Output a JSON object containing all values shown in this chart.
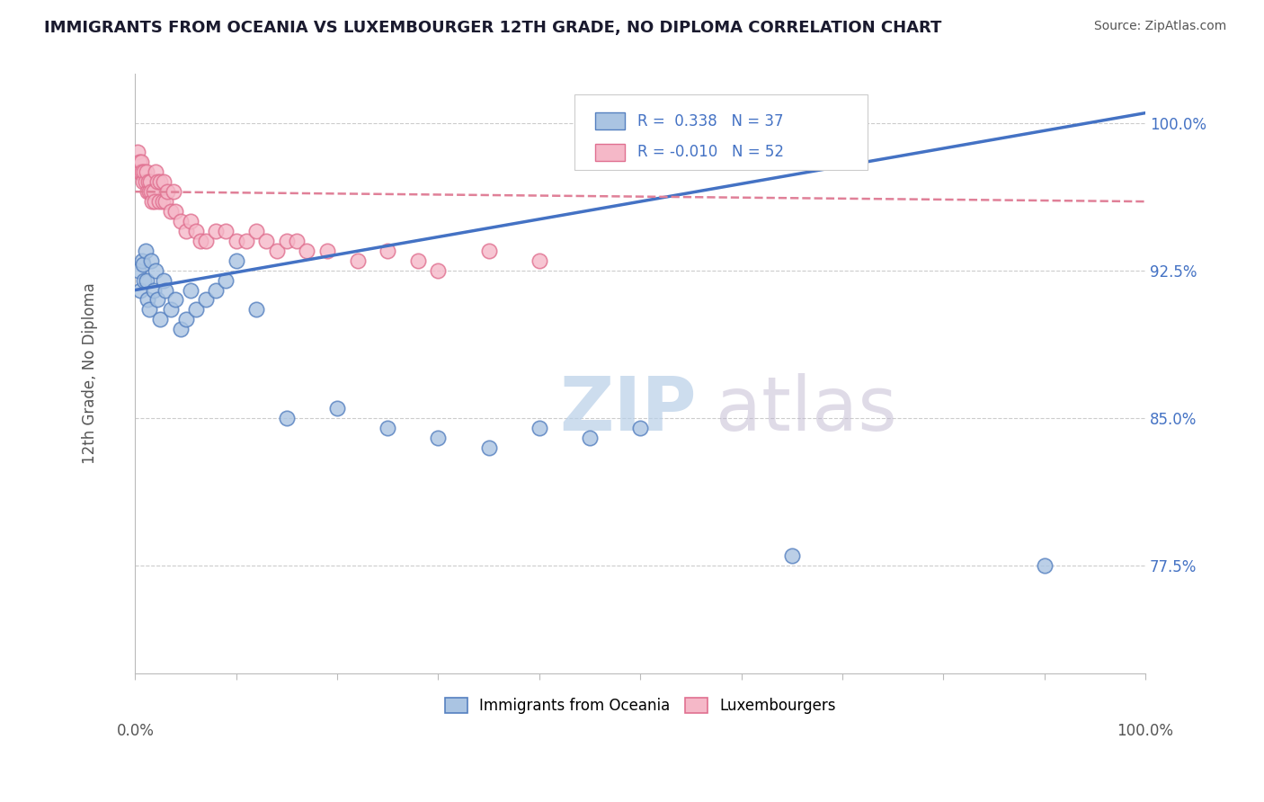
{
  "title": "IMMIGRANTS FROM OCEANIA VS LUXEMBOURGER 12TH GRADE, NO DIPLOMA CORRELATION CHART",
  "source": "Source: ZipAtlas.com",
  "ylabel": "12th Grade, No Diploma",
  "legend_blue_r": "R =  0.338",
  "legend_blue_n": "N = 37",
  "legend_pink_r": "R = -0.010",
  "legend_pink_n": "N = 52",
  "legend_blue_label": "Immigrants from Oceania",
  "legend_pink_label": "Luxembourgers",
  "ytick_vals": [
    100.0,
    92.5,
    85.0,
    77.5
  ],
  "xmin": 0.0,
  "xmax": 100.0,
  "ymin": 72.0,
  "ymax": 102.5,
  "blue_scatter_x": [
    0.3,
    0.5,
    0.7,
    0.8,
    0.9,
    1.0,
    1.1,
    1.2,
    1.4,
    1.6,
    1.8,
    2.0,
    2.2,
    2.5,
    2.8,
    3.0,
    3.5,
    4.0,
    4.5,
    5.0,
    5.5,
    6.0,
    7.0,
    8.0,
    9.0,
    10.0,
    12.0,
    15.0,
    20.0,
    25.0,
    30.0,
    35.0,
    40.0,
    45.0,
    50.0,
    65.0,
    90.0
  ],
  "blue_scatter_y": [
    92.5,
    91.5,
    93.0,
    92.8,
    92.0,
    93.5,
    92.0,
    91.0,
    90.5,
    93.0,
    91.5,
    92.5,
    91.0,
    90.0,
    92.0,
    91.5,
    90.5,
    91.0,
    89.5,
    90.0,
    91.5,
    90.5,
    91.0,
    91.5,
    92.0,
    93.0,
    90.5,
    85.0,
    85.5,
    84.5,
    84.0,
    83.5,
    84.5,
    84.0,
    84.5,
    78.0,
    77.5
  ],
  "pink_scatter_x": [
    0.2,
    0.3,
    0.4,
    0.5,
    0.6,
    0.7,
    0.8,
    0.9,
    1.0,
    1.1,
    1.2,
    1.3,
    1.4,
    1.5,
    1.6,
    1.7,
    1.8,
    1.9,
    2.0,
    2.2,
    2.4,
    2.5,
    2.7,
    2.8,
    3.0,
    3.2,
    3.5,
    3.8,
    4.0,
    4.5,
    5.0,
    5.5,
    6.0,
    6.5,
    7.0,
    8.0,
    9.0,
    10.0,
    11.0,
    12.0,
    13.0,
    14.0,
    15.0,
    16.0,
    17.0,
    19.0,
    22.0,
    25.0,
    28.0,
    30.0,
    35.0,
    40.0
  ],
  "pink_scatter_y": [
    98.5,
    97.5,
    98.0,
    97.5,
    98.0,
    97.5,
    97.0,
    97.5,
    97.0,
    97.5,
    96.5,
    97.0,
    96.5,
    97.0,
    96.5,
    96.0,
    96.5,
    96.0,
    97.5,
    97.0,
    96.0,
    97.0,
    96.0,
    97.0,
    96.0,
    96.5,
    95.5,
    96.5,
    95.5,
    95.0,
    94.5,
    95.0,
    94.5,
    94.0,
    94.0,
    94.5,
    94.5,
    94.0,
    94.0,
    94.5,
    94.0,
    93.5,
    94.0,
    94.0,
    93.5,
    93.5,
    93.0,
    93.5,
    93.0,
    92.5,
    93.5,
    93.0
  ],
  "blue_line_start_x": 0.0,
  "blue_line_end_x": 100.0,
  "blue_line_start_y": 91.5,
  "blue_line_end_y": 100.5,
  "pink_line_start_x": 0.0,
  "pink_line_end_x": 100.0,
  "pink_line_start_y": 96.5,
  "pink_line_end_y": 96.0,
  "blue_color": "#aac4e2",
  "pink_color": "#f5b8c8",
  "blue_edge_color": "#5580c0",
  "pink_edge_color": "#e07090",
  "blue_line_color": "#4472c4",
  "pink_line_color": "#e08098",
  "grid_color": "#cccccc",
  "background_color": "#ffffff",
  "title_color": "#1a1a2e",
  "source_color": "#555555",
  "ylabel_color": "#555555",
  "ytick_color": "#4472c4",
  "xtick_color": "#555555",
  "watermark_zip_color": "#b8cfe8",
  "watermark_atlas_color": "#c0b8d0"
}
